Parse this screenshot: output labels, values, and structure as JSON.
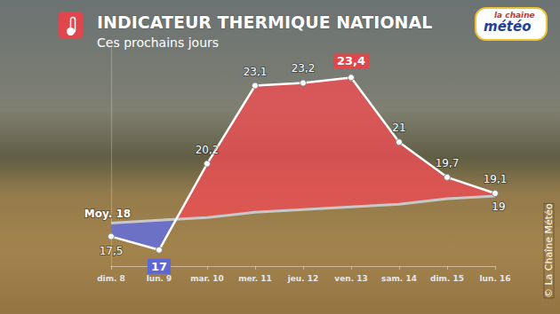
{
  "chart_data": {
    "type": "line",
    "title": "INDICATEUR THERMIQUE NATIONAL",
    "subtitle": "Ces prochains jours",
    "annotations": [
      "la chaîne",
      "météo",
      "© La Chaîne Météo"
    ],
    "categories": [
      "dim. 8",
      "lun. 9",
      "mar. 10",
      "mer. 11",
      "jeu. 12",
      "ven. 13",
      "sam. 14",
      "dim. 15",
      "lun. 16"
    ],
    "series": [
      {
        "values": [
          17.5,
          17,
          20.2,
          23.1,
          23.2,
          23.4,
          21,
          19.7,
          19.1
        ],
        "value_labels": [
          "17,5",
          "17",
          "20,2",
          "23,1",
          "23,2",
          "23,4",
          "21",
          "19,7",
          "19,1"
        ],
        "color": "#ffffff",
        "marker": "circle",
        "line_style": "solid"
      },
      {
        "values": [
          18,
          18.1,
          18.2,
          18.4,
          18.5,
          18.6,
          18.7,
          18.9,
          19
        ],
        "value_labels": [
          "Moy. 18",
          null,
          null,
          null,
          null,
          null,
          null,
          null,
          "19"
        ],
        "color": "#c8c8c8",
        "marker": "none",
        "line_style": "solid"
      }
    ],
    "ylim": [
      16.4,
      24.5
    ],
    "tick_labels": "x",
    "grid": false,
    "data_labels": true
  }
}
